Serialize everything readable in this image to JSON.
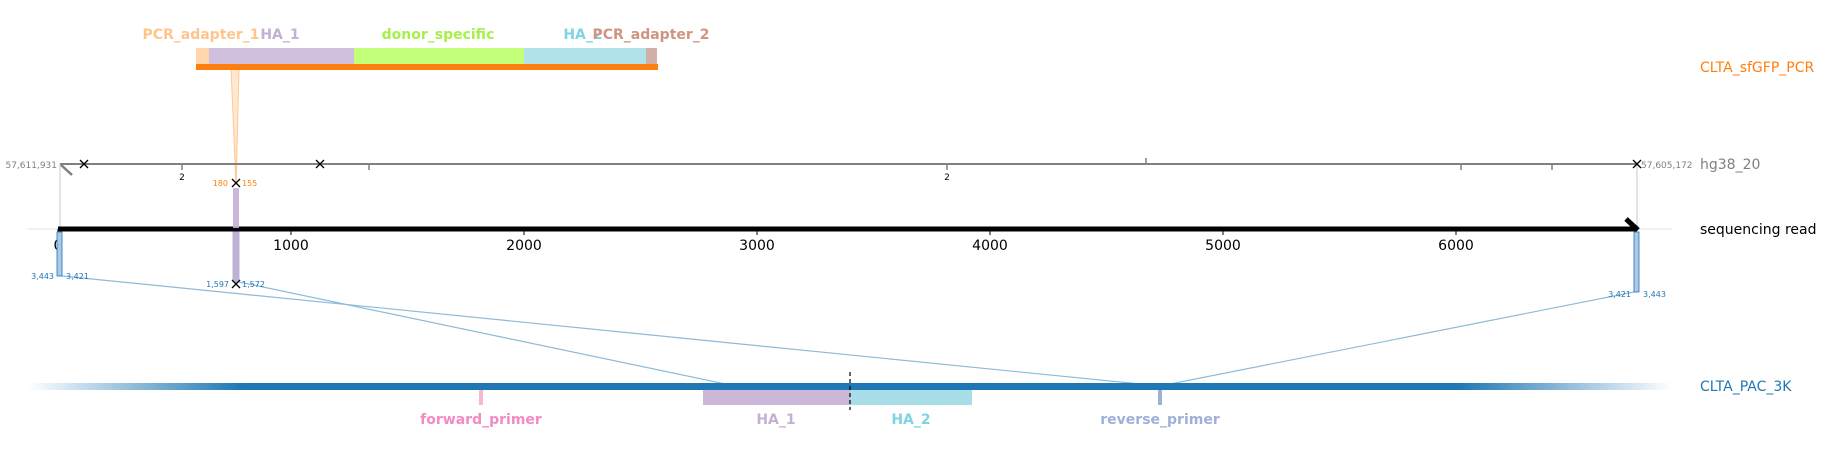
{
  "tracks": {
    "pcr": {
      "name": "CLTA_sfGFP_PCR",
      "color": "#ff7f0e"
    },
    "ref": {
      "name": "hg38_20",
      "color": "#7f7f7f",
      "left_coord": "57,611,931",
      "right_coord": "57,605,172",
      "tick_label_a": "2",
      "tick_label_b": "2"
    },
    "read": {
      "name": "sequencing read",
      "color": "#000000"
    },
    "pac": {
      "name": "CLTA_PAC_3K",
      "color": "#1f77b4"
    }
  },
  "read_axis": {
    "ticks": [
      "0",
      "1000",
      "2000",
      "3000",
      "4000",
      "5000",
      "6000"
    ]
  },
  "pcr_features": {
    "pcr_adapter_1": {
      "label": "PCR_adapter_1",
      "color": "#ffbb78"
    },
    "ha_1": {
      "label": "HA_1",
      "color": "#c5b0d5"
    },
    "donor_specific": {
      "label": "donor_specific",
      "color": "#b5ff59"
    },
    "ha_2": {
      "label": "HA_2",
      "color": "#9edae5"
    },
    "pcr_adapter_2": {
      "label": "PCR_adapter_2",
      "color": "#c49c94"
    }
  },
  "pac_features": {
    "forward_primer": {
      "label": "forward_primer",
      "color": "#f7b6d2"
    },
    "ha_1": {
      "label": "HA_1",
      "color": "#c5b0d5"
    },
    "ha_2": {
      "label": "HA_2",
      "color": "#9edae5"
    },
    "reverse_primer": {
      "label": "reverse_primer",
      "color": "#9fb0d8"
    }
  },
  "alignment_labels": {
    "pcr_left": "180",
    "pcr_right": "155",
    "pac_a_left": "3,443",
    "pac_a_right": "3,421",
    "pac_b_left": "1,597",
    "pac_b_right": "1,572",
    "pac_c_left": "3,421",
    "pac_c_right": "3,443"
  }
}
